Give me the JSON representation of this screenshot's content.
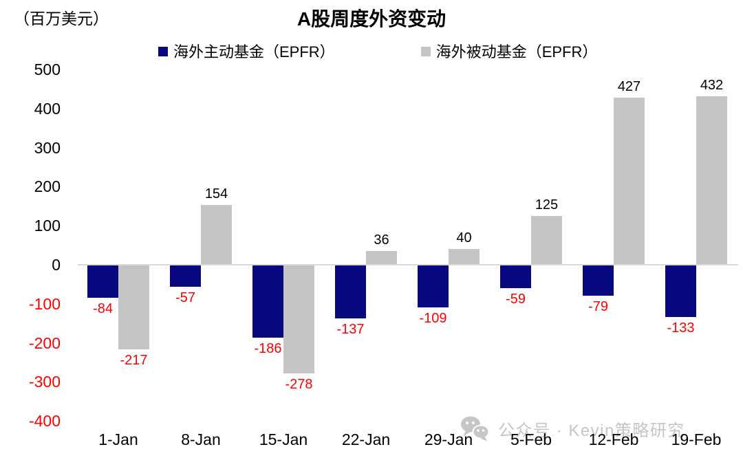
{
  "chart_data": {
    "type": "bar",
    "title": "A股周度外资变动",
    "unit_label": "（百万美元）",
    "categories": [
      "1-Jan",
      "8-Jan",
      "15-Jan",
      "22-Jan",
      "29-Jan",
      "5-Feb",
      "12-Feb",
      "19-Feb"
    ],
    "series": [
      {
        "name": "海外主动基金（EPFR）",
        "color": "#08087F",
        "values": [
          -84,
          -57,
          -186,
          -137,
          -109,
          -59,
          -79,
          -133
        ]
      },
      {
        "name": "海外被动基金（EPFR）",
        "color": "#C5C5C5",
        "values": [
          -217,
          154,
          -278,
          36,
          40,
          125,
          427,
          432
        ]
      }
    ],
    "yticks": [
      500,
      400,
      300,
      200,
      100,
      0,
      -100,
      -200,
      -300,
      -400
    ],
    "ylim": [
      -400,
      500
    ],
    "grid": false,
    "legend_position": "top",
    "zero_line_color": "#D9D9D9",
    "positive_label_color": "#000000",
    "negative_label_color": "#FF0000"
  },
  "watermark": {
    "icon": "wechat-icon",
    "text": "公众号 · Kevin策略研究",
    "color": "#C6C6C6"
  }
}
